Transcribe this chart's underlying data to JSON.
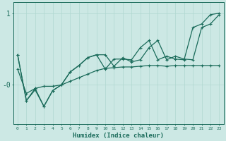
{
  "xlabel": "Humidex (Indice chaleur)",
  "background_color": "#cce8e4",
  "line_color": "#1a6b5a",
  "grid_color": "#b0d8d0",
  "xlim": [
    -0.5,
    23.5
  ],
  "ylim": [
    -0.55,
    1.15
  ],
  "ytick_positions": [
    1.0,
    0.0
  ],
  "ytick_labels": [
    "1",
    "-0"
  ],
  "xtick_positions": [
    0,
    1,
    2,
    3,
    4,
    5,
    6,
    7,
    8,
    9,
    10,
    11,
    12,
    13,
    14,
    15,
    16,
    17,
    18,
    19,
    20,
    21,
    22,
    23
  ],
  "series1_x": [
    0,
    1,
    2,
    3,
    4,
    5,
    6,
    7,
    8,
    9,
    10,
    11,
    12,
    13,
    14,
    15,
    16,
    17,
    18,
    19,
    20,
    21,
    22,
    23
  ],
  "series1_y": [
    0.22,
    -0.12,
    -0.05,
    -0.02,
    -0.02,
    0.0,
    0.05,
    0.1,
    0.15,
    0.2,
    0.23,
    0.24,
    0.25,
    0.25,
    0.26,
    0.27,
    0.27,
    0.26,
    0.27,
    0.27,
    0.27,
    0.27,
    0.27,
    0.27
  ],
  "series2_x": [
    0,
    1,
    2,
    3,
    4,
    5,
    6,
    7,
    8,
    9,
    10,
    11,
    12,
    13,
    14,
    15,
    16,
    17,
    18,
    19,
    20,
    21,
    22,
    23
  ],
  "series2_y": [
    0.42,
    -0.22,
    -0.05,
    -0.3,
    -0.08,
    0.0,
    0.18,
    0.27,
    0.38,
    0.42,
    0.42,
    0.26,
    0.38,
    0.32,
    0.35,
    0.52,
    0.62,
    0.35,
    0.4,
    0.36,
    0.35,
    0.8,
    0.85,
    0.98
  ],
  "series3_x": [
    0,
    1,
    2,
    3,
    4,
    5,
    6,
    7,
    8,
    9,
    10,
    11,
    12,
    13,
    14,
    15,
    16,
    17,
    18,
    19,
    20,
    21,
    22,
    23
  ],
  "series3_y": [
    0.42,
    -0.22,
    -0.07,
    -0.3,
    -0.08,
    0.0,
    0.18,
    0.27,
    0.38,
    0.42,
    0.22,
    0.36,
    0.36,
    0.35,
    0.52,
    0.62,
    0.35,
    0.4,
    0.36,
    0.35,
    0.8,
    0.85,
    0.98,
    1.0
  ]
}
